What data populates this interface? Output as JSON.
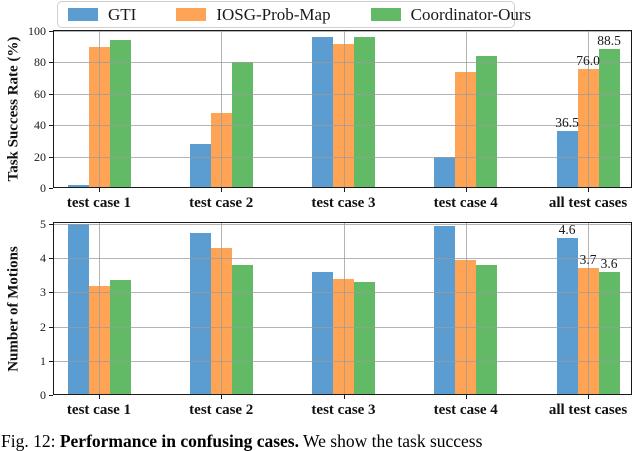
{
  "figure": {
    "caption_prefix": "Fig. 12: ",
    "caption_bold": "Performance in confusing cases.",
    "caption_rest": " We show the task success"
  },
  "colors": {
    "gti": "#5b9dd1",
    "iosg": "#ffa455",
    "ours": "#62ba66",
    "grid": "#9b9b9b",
    "spine": "#1a1a1a"
  },
  "legend": {
    "items": [
      {
        "label": "GTI",
        "color": "#5b9dd1"
      },
      {
        "label": "IOSG-Prob-Map",
        "color": "#ffa455"
      },
      {
        "label": "Coordinator-Ours",
        "color": "#62ba66"
      }
    ]
  },
  "chart_data": [
    {
      "type": "bar",
      "title": "",
      "xlabel": "",
      "ylabel": "Task Success Rate (%)",
      "categories": [
        "test case 1",
        "test case 2",
        "test case 3",
        "test case 4",
        "all test cases"
      ],
      "series": [
        {
          "name": "GTI",
          "color": "#5b9dd1",
          "values": [
            2,
            28,
            96,
            20,
            36.5
          ]
        },
        {
          "name": "IOSG-Prob-Map",
          "color": "#ffa455",
          "values": [
            90,
            48,
            92,
            74,
            76.0
          ]
        },
        {
          "name": "Coordinator-Ours",
          "color": "#62ba66",
          "values": [
            94,
            80,
            96,
            84,
            88.5
          ]
        }
      ],
      "ylim": [
        0,
        100
      ],
      "yticks": [
        0,
        20,
        40,
        60,
        80,
        100
      ],
      "grid": true,
      "legend_position": "top",
      "annotations": [
        {
          "group": 4,
          "series": 0,
          "text": "36.5"
        },
        {
          "group": 4,
          "series": 1,
          "text": "76.0"
        },
        {
          "group": 4,
          "series": 2,
          "text": "88.5"
        }
      ]
    },
    {
      "type": "bar",
      "title": "",
      "xlabel": "",
      "ylabel": "Number of Motions",
      "categories": [
        "test case 1",
        "test case 2",
        "test case 3",
        "test case 4",
        "all test cases"
      ],
      "series": [
        {
          "name": "GTI",
          "color": "#5b9dd1",
          "values": [
            5.0,
            4.75,
            3.6,
            4.95,
            4.6
          ]
        },
        {
          "name": "IOSG-Prob-Map",
          "color": "#ffa455",
          "values": [
            3.2,
            4.3,
            3.4,
            3.95,
            3.7
          ]
        },
        {
          "name": "Coordinator-Ours",
          "color": "#62ba66",
          "values": [
            3.35,
            3.8,
            3.3,
            3.8,
            3.6
          ]
        }
      ],
      "ylim": [
        0,
        5
      ],
      "yticks": [
        0,
        1,
        2,
        3,
        4,
        5
      ],
      "grid": true,
      "annotations": [
        {
          "group": 4,
          "series": 0,
          "text": "4.6"
        },
        {
          "group": 4,
          "series": 1,
          "text": "3.7"
        },
        {
          "group": 4,
          "series": 2,
          "text": "3.6"
        }
      ]
    }
  ]
}
